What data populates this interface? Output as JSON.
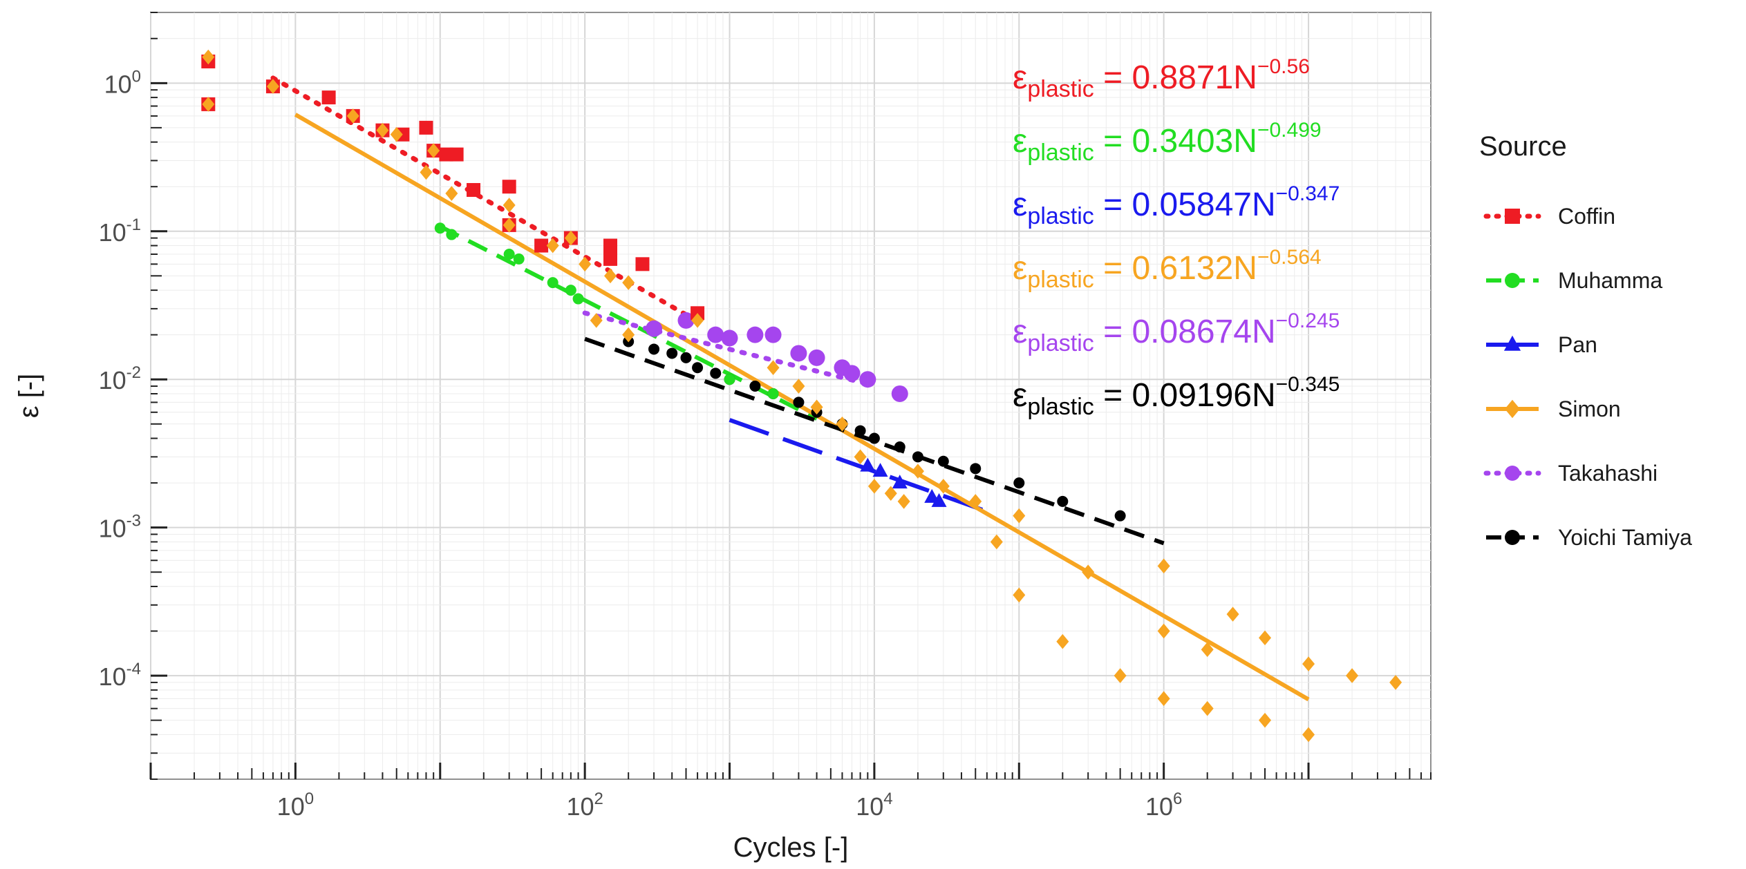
{
  "chart_data": {
    "type": "scatter",
    "title": "",
    "xlabel": "Cycles [-]",
    "ylabel": "ε [-]",
    "xscale": "log",
    "yscale": "log",
    "xlim": [
      0.1,
      70000000
    ],
    "ylim": [
      2e-05,
      3
    ],
    "grid": true,
    "x_ticks": [
      {
        "value": 1,
        "mantissa": "10",
        "exp": "0"
      },
      {
        "value": 100,
        "mantissa": "10",
        "exp": "2"
      },
      {
        "value": 10000,
        "mantissa": "10",
        "exp": "4"
      },
      {
        "value": 1000000,
        "mantissa": "10",
        "exp": "6"
      }
    ],
    "y_ticks": [
      {
        "value": 0.0001,
        "mantissa": "10",
        "exp": "-4"
      },
      {
        "value": 0.001,
        "mantissa": "10",
        "exp": "-3"
      },
      {
        "value": 0.01,
        "mantissa": "10",
        "exp": "-2"
      },
      {
        "value": 0.1,
        "mantissa": "10",
        "exp": "-1"
      },
      {
        "value": 1,
        "mantissa": "10",
        "exp": "0"
      }
    ],
    "legend": {
      "title": "Source",
      "position": "right",
      "entries": [
        {
          "name": "Coffin",
          "color": "#ee1c24",
          "marker": "square",
          "line": "dotted"
        },
        {
          "name": "Muhamma",
          "color": "#22dd22",
          "marker": "circle",
          "line": "dashed"
        },
        {
          "name": "Pan",
          "color": "#1a1aee",
          "marker": "triangle",
          "line": "longdash"
        },
        {
          "name": "Simon",
          "color": "#f7a521",
          "marker": "diamond",
          "line": "solid"
        },
        {
          "name": "Takahashi",
          "color": "#a545ee",
          "marker": "circle",
          "line": "dotted"
        },
        {
          "name": "Yoichi Tamiya",
          "color": "#000000",
          "marker": "circle",
          "line": "dashed"
        }
      ]
    },
    "equations": [
      {
        "prefix": "ε",
        "sub": "plastic",
        "text": " = 0.8871N",
        "exp": "−0.56",
        "color": "#ee1c24"
      },
      {
        "prefix": "ε",
        "sub": "plastic",
        "text": " = 0.3403N",
        "exp": "−0.499",
        "color": "#22dd22"
      },
      {
        "prefix": "ε",
        "sub": "plastic",
        "text": " = 0.05847N",
        "exp": "−0.347",
        "color": "#1a1aee"
      },
      {
        "prefix": "ε",
        "sub": "plastic",
        "text": " = 0.6132N",
        "exp": "−0.564",
        "color": "#f7a521"
      },
      {
        "prefix": "ε",
        "sub": "plastic",
        "text": " = 0.08674N",
        "exp": "−0.245",
        "color": "#a545ee"
      },
      {
        "prefix": "ε",
        "sub": "plastic",
        "text": " = 0.09196N",
        "exp": "−0.345",
        "color": "#000000"
      }
    ],
    "series": [
      {
        "name": "Coffin",
        "color": "#ee1c24",
        "marker": "square",
        "fit": {
          "a": 0.8871,
          "b": -0.56,
          "x_range": [
            0.7,
            600
          ],
          "dash": "dotted"
        },
        "points": [
          [
            0.25,
            1.4
          ],
          [
            0.25,
            0.72
          ],
          [
            0.7,
            0.95
          ],
          [
            1.7,
            0.8
          ],
          [
            2.5,
            0.6
          ],
          [
            4,
            0.48
          ],
          [
            5.5,
            0.45
          ],
          [
            8,
            0.5
          ],
          [
            9,
            0.35
          ],
          [
            11,
            0.33
          ],
          [
            13,
            0.33
          ],
          [
            17,
            0.19
          ],
          [
            30,
            0.2
          ],
          [
            30,
            0.11
          ],
          [
            50,
            0.08
          ],
          [
            80,
            0.09
          ],
          [
            150,
            0.08
          ],
          [
            150,
            0.065
          ],
          [
            250,
            0.06
          ],
          [
            600,
            0.028
          ]
        ]
      },
      {
        "name": "Muhamma",
        "color": "#22dd22",
        "marker": "circle",
        "fit": {
          "a": 0.3403,
          "b": -0.499,
          "x_range": [
            10,
            4000
          ],
          "dash": "dashed"
        },
        "points": [
          [
            10,
            0.105
          ],
          [
            12,
            0.095
          ],
          [
            30,
            0.07
          ],
          [
            35,
            0.065
          ],
          [
            60,
            0.045
          ],
          [
            80,
            0.04
          ],
          [
            90,
            0.035
          ],
          [
            1000,
            0.01
          ],
          [
            2000,
            0.008
          ]
        ]
      },
      {
        "name": "Pan",
        "color": "#1a1aee",
        "marker": "triangle",
        "fit": {
          "a": 0.05847,
          "b": -0.347,
          "x_range": [
            1000,
            60000
          ],
          "dash": "longdash"
        },
        "points": [
          [
            9000,
            0.0026
          ],
          [
            11000,
            0.0024
          ],
          [
            15000,
            0.002
          ],
          [
            25000,
            0.0016
          ],
          [
            28000,
            0.0015
          ]
        ]
      },
      {
        "name": "Simon",
        "color": "#f7a521",
        "marker": "diamond",
        "fit": {
          "a": 0.6132,
          "b": -0.564,
          "x_range": [
            1,
            10000000
          ],
          "dash": "solid"
        },
        "points": [
          [
            0.25,
            1.5
          ],
          [
            0.25,
            0.72
          ],
          [
            0.7,
            0.95
          ],
          [
            2.5,
            0.6
          ],
          [
            4,
            0.48
          ],
          [
            5,
            0.45
          ],
          [
            8,
            0.25
          ],
          [
            9,
            0.35
          ],
          [
            12,
            0.18
          ],
          [
            30,
            0.15
          ],
          [
            30,
            0.11
          ],
          [
            60,
            0.08
          ],
          [
            80,
            0.09
          ],
          [
            100,
            0.06
          ],
          [
            150,
            0.05
          ],
          [
            200,
            0.045
          ],
          [
            120,
            0.025
          ],
          [
            200,
            0.02
          ],
          [
            600,
            0.025
          ],
          [
            2000,
            0.012
          ],
          [
            3000,
            0.009
          ],
          [
            4000,
            0.0065
          ],
          [
            6000,
            0.005
          ],
          [
            8000,
            0.003
          ],
          [
            10000,
            0.0019
          ],
          [
            13000,
            0.0017
          ],
          [
            16000,
            0.0015
          ],
          [
            20000,
            0.0024
          ],
          [
            30000,
            0.0019
          ],
          [
            50000,
            0.0015
          ],
          [
            70000,
            0.0008
          ],
          [
            100000,
            0.00035
          ],
          [
            100000,
            0.0012
          ],
          [
            200000,
            0.00017
          ],
          [
            300000,
            0.0005
          ],
          [
            500000,
            0.0001
          ],
          [
            1000000,
            0.00055
          ],
          [
            1000000,
            7e-05
          ],
          [
            1000000,
            0.0002
          ],
          [
            2000000,
            6e-05
          ],
          [
            2000000,
            0.00015
          ],
          [
            3000000,
            0.00026
          ],
          [
            5000000,
            5e-05
          ],
          [
            5000000,
            0.00018
          ],
          [
            10000000,
            4e-05
          ],
          [
            10000000,
            0.00012
          ],
          [
            20000000,
            0.0001
          ],
          [
            40000000,
            9e-05
          ]
        ]
      },
      {
        "name": "Takahashi",
        "color": "#a545ee",
        "marker": "circle",
        "fit": {
          "a": 0.08674,
          "b": -0.245,
          "x_range": [
            100,
            10000
          ],
          "dash": "dotted"
        },
        "points": [
          [
            300,
            0.022
          ],
          [
            500,
            0.025
          ],
          [
            800,
            0.02
          ],
          [
            1000,
            0.019
          ],
          [
            1500,
            0.02
          ],
          [
            2000,
            0.02
          ],
          [
            3000,
            0.015
          ],
          [
            4000,
            0.014
          ],
          [
            6000,
            0.012
          ],
          [
            7000,
            0.011
          ],
          [
            9000,
            0.01
          ],
          [
            15000,
            0.008
          ]
        ]
      },
      {
        "name": "Yoichi Tamiya",
        "color": "#000000",
        "marker": "circle",
        "fit": {
          "a": 0.09196,
          "b": -0.345,
          "x_range": [
            100,
            1000000
          ],
          "dash": "dashed"
        },
        "points": [
          [
            200,
            0.018
          ],
          [
            300,
            0.016
          ],
          [
            400,
            0.015
          ],
          [
            500,
            0.014
          ],
          [
            600,
            0.012
          ],
          [
            800,
            0.011
          ],
          [
            1000,
            0.01
          ],
          [
            1500,
            0.009
          ],
          [
            2000,
            0.008
          ],
          [
            3000,
            0.007
          ],
          [
            4000,
            0.006
          ],
          [
            6000,
            0.005
          ],
          [
            8000,
            0.0045
          ],
          [
            10000,
            0.004
          ],
          [
            15000,
            0.0035
          ],
          [
            20000,
            0.003
          ],
          [
            30000,
            0.0028
          ],
          [
            50000,
            0.0025
          ],
          [
            100000,
            0.002
          ],
          [
            200000,
            0.0015
          ],
          [
            500000,
            0.0012
          ]
        ]
      }
    ]
  }
}
